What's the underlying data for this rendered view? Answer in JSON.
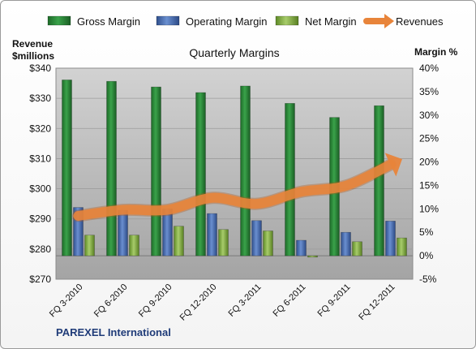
{
  "company": "PAREXEL International",
  "chart_data": {
    "type": "bar",
    "title": "Quarterly Margins",
    "categories": [
      "FQ 3-2010",
      "FQ 6-2010",
      "FQ 9-2010",
      "FQ 12-2010",
      "FQ 3-2011",
      "FQ 6-2011",
      "FQ 9-2011",
      "FQ 12-2011"
    ],
    "series": [
      {
        "name": "Gross Margin",
        "type": "bar",
        "axis": "right",
        "color": "#2e8b3a",
        "values": [
          37.5,
          37.2,
          36.0,
          34.8,
          36.2,
          32.5,
          29.5,
          32.0
        ]
      },
      {
        "name": "Operating Margin",
        "type": "bar",
        "axis": "right",
        "color": "#4a70b6",
        "values": [
          10.3,
          9.7,
          10.0,
          9.0,
          7.5,
          3.3,
          5.0,
          7.4
        ]
      },
      {
        "name": "Net Margin",
        "type": "bar",
        "axis": "right",
        "color": "#8ab84a",
        "values": [
          4.4,
          4.4,
          6.3,
          5.6,
          5.3,
          -0.3,
          3.0,
          3.8
        ]
      },
      {
        "name": "Revenues",
        "type": "line",
        "axis": "left",
        "color": "#e8843a",
        "values": [
          291,
          293,
          293,
          297,
          295,
          299,
          301,
          308
        ]
      }
    ],
    "left_axis": {
      "label": "Revenue $millions",
      "label_lines": [
        "Revenue",
        "$millions"
      ],
      "range": [
        270,
        340
      ],
      "step": 10,
      "tick_labels": [
        "$270",
        "$280",
        "$290",
        "$300",
        "$310",
        "$320",
        "$330",
        "$340"
      ]
    },
    "right_axis": {
      "label": "Margin %",
      "range": [
        -5,
        40
      ],
      "step": 5,
      "tick_labels": [
        "-5%",
        "0%",
        "5%",
        "10%",
        "15%",
        "20%",
        "25%",
        "30%",
        "35%",
        "40%"
      ]
    },
    "legend_position": "top",
    "grid": true
  }
}
